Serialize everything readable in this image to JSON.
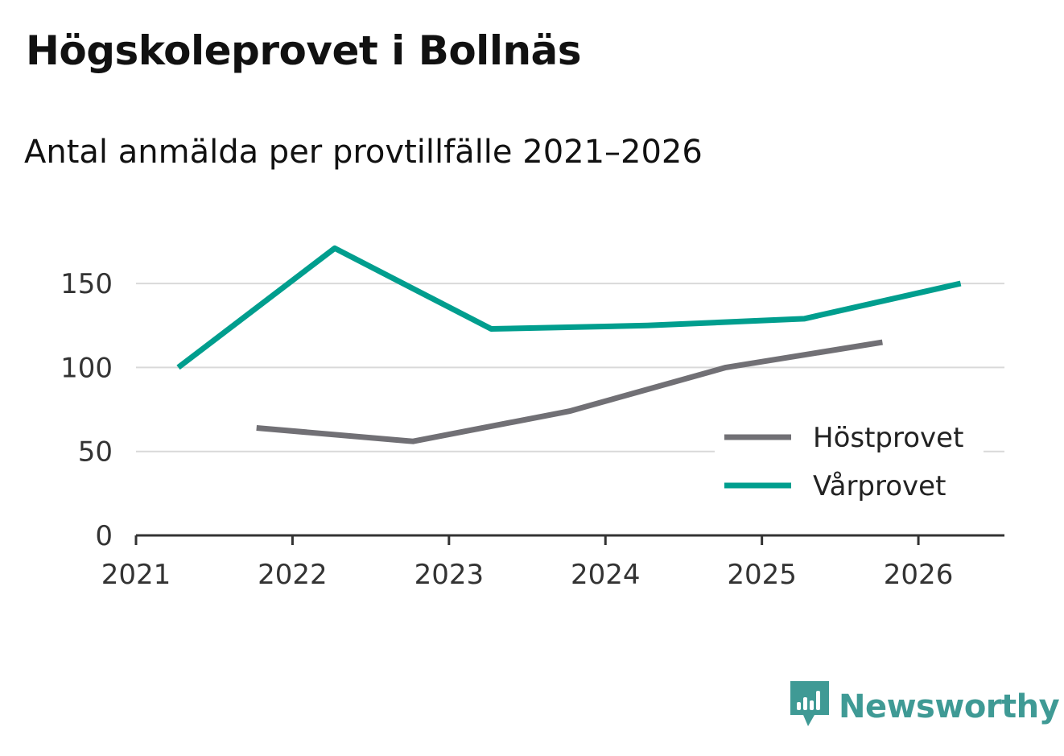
{
  "title": "Högskoleprovet i Bollnäs",
  "subtitle": "Antal anmälda per provtillfälle 2021–2026",
  "chart_data": {
    "type": "line",
    "title": "Högskoleprovet i Bollnäs",
    "subtitle": "Antal anmälda per provtillfälle 2021–2026",
    "xlabel": "",
    "ylabel": "",
    "xlim": [
      2021,
      2026.55
    ],
    "ylim": [
      0,
      175
    ],
    "x_ticks": [
      "2021",
      "2022",
      "2023",
      "2024",
      "2025",
      "2026"
    ],
    "y_ticks": [
      "0",
      "50",
      "100",
      "150"
    ],
    "grid": true,
    "legend_position": "bottom-right",
    "series": [
      {
        "name": "Höstprovet",
        "color": "#717075",
        "x": [
          2021.77,
          2022.77,
          2023.77,
          2024.77,
          2025.77
        ],
        "values": [
          64,
          56,
          74,
          100,
          115
        ]
      },
      {
        "name": "Vårprovet",
        "color": "#009e8e",
        "x": [
          2021.27,
          2022.27,
          2023.27,
          2024.27,
          2025.27,
          2026.27
        ],
        "values": [
          100,
          171,
          123,
          125,
          129,
          150
        ]
      }
    ]
  },
  "brand": {
    "name": "Newsworthy",
    "icon": "newsworthy-logo-icon",
    "color": "#3f9a95"
  }
}
